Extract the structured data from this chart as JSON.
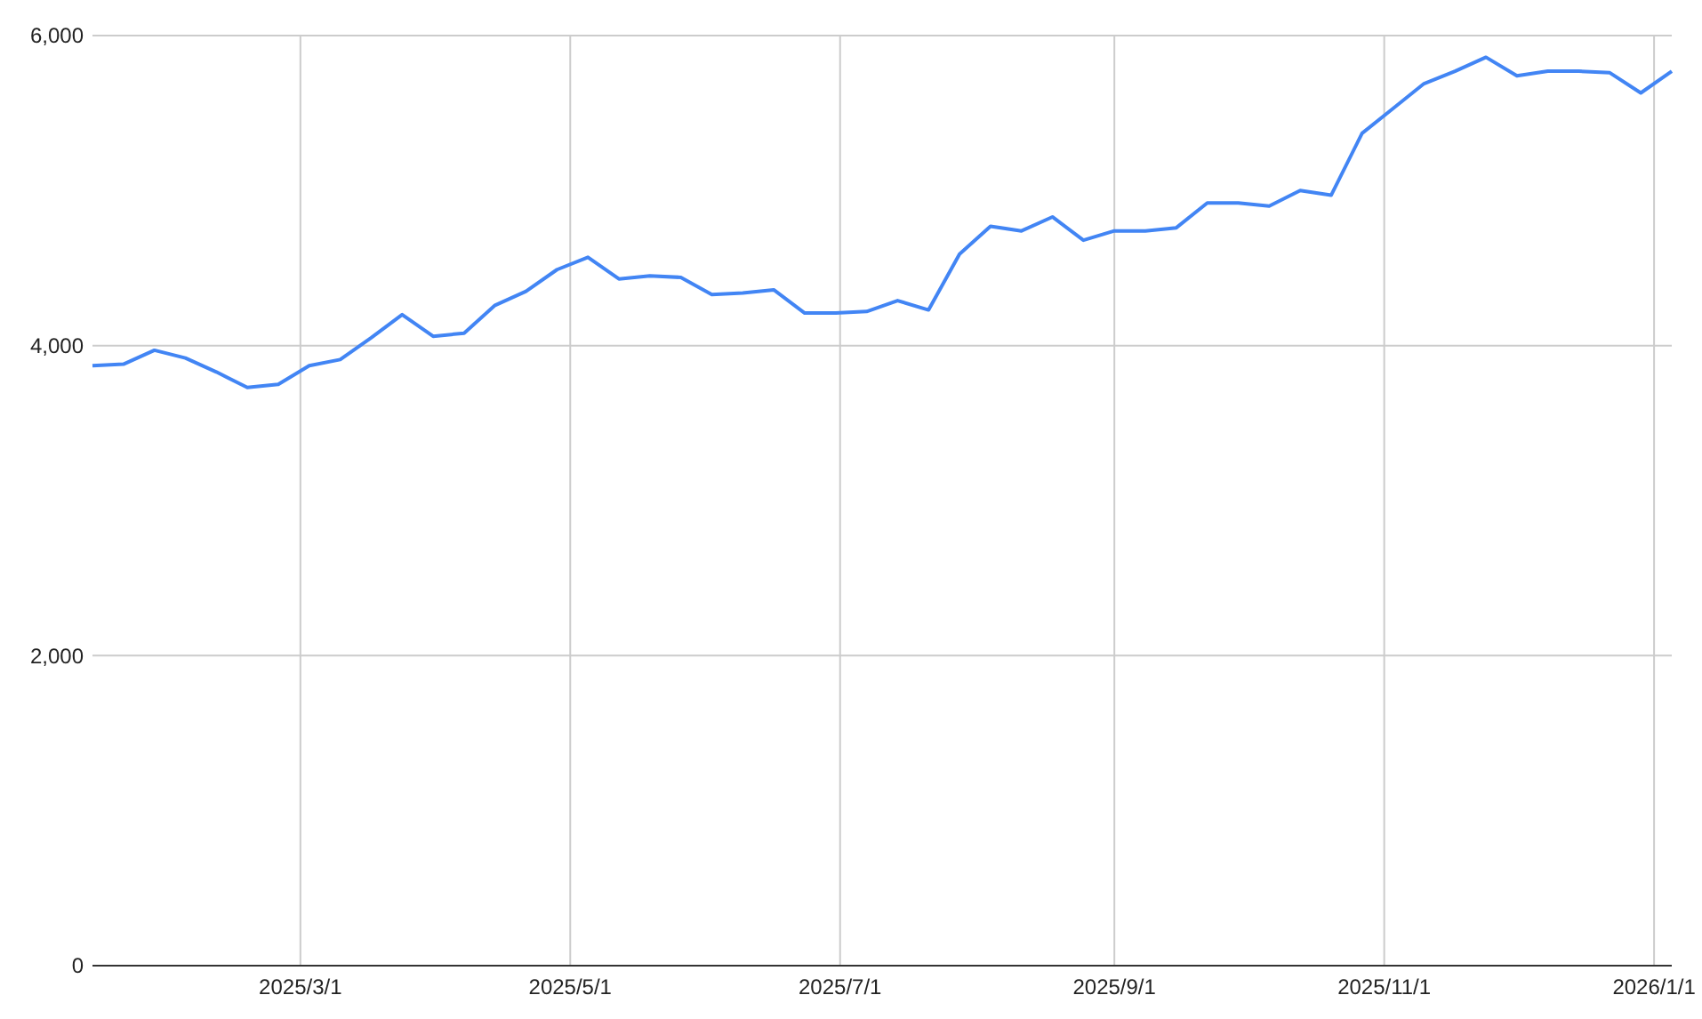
{
  "chart_data": {
    "type": "line",
    "x": [
      "2025-01-13",
      "2025-01-20",
      "2025-01-27",
      "2025-02-03",
      "2025-02-10",
      "2025-02-17",
      "2025-02-24",
      "2025-03-03",
      "2025-03-10",
      "2025-03-17",
      "2025-03-24",
      "2025-03-31",
      "2025-04-07",
      "2025-04-14",
      "2025-04-21",
      "2025-04-28",
      "2025-05-05",
      "2025-05-12",
      "2025-05-19",
      "2025-05-26",
      "2025-06-02",
      "2025-06-09",
      "2025-06-16",
      "2025-06-23",
      "2025-06-30",
      "2025-07-07",
      "2025-07-14",
      "2025-07-21",
      "2025-07-28",
      "2025-08-04",
      "2025-08-11",
      "2025-08-18",
      "2025-08-25",
      "2025-09-01",
      "2025-09-08",
      "2025-09-15",
      "2025-09-22",
      "2025-09-29",
      "2025-10-06",
      "2025-10-13",
      "2025-10-20",
      "2025-10-27",
      "2025-11-03",
      "2025-11-10",
      "2025-11-17",
      "2025-11-24",
      "2025-12-01",
      "2025-12-08",
      "2025-12-15",
      "2025-12-22",
      "2025-12-29",
      "2026-01-05"
    ],
    "series": [
      {
        "color": "#4285f4",
        "values": [
          3870,
          3880,
          3970,
          3920,
          3830,
          3730,
          3750,
          3870,
          3910,
          4050,
          4200,
          4060,
          4080,
          4260,
          4350,
          4490,
          4570,
          4430,
          4450,
          4440,
          4330,
          4340,
          4360,
          4210,
          4210,
          4220,
          4290,
          4230,
          4590,
          4770,
          4740,
          4830,
          4680,
          4740,
          4740,
          4760,
          4920,
          4920,
          4900,
          5000,
          4970,
          5370,
          5530,
          5690,
          5770,
          5860,
          5740,
          5770,
          5770,
          5760,
          5630,
          5770
        ]
      }
    ],
    "xlim": [
      "2025-01-13",
      "2026-01-05"
    ],
    "xticks": [
      {
        "value": "2025-03-01",
        "label": "2025/3/1"
      },
      {
        "value": "2025-05-01",
        "label": "2025/5/1"
      },
      {
        "value": "2025-07-01",
        "label": "2025/7/1"
      },
      {
        "value": "2025-09-01",
        "label": "2025/9/1"
      },
      {
        "value": "2025-11-01",
        "label": "2025/11/1"
      },
      {
        "value": "2026-01-01",
        "label": "2026/1/1"
      }
    ],
    "ylim": [
      0,
      6000
    ],
    "yticks": [
      0,
      {
        "value": 2000,
        "label": "2,000"
      },
      {
        "value": 4000,
        "label": "4,000"
      },
      {
        "value": 6000,
        "label": "6,000"
      }
    ],
    "grid": true,
    "marker": "none",
    "line_style": "solid"
  }
}
